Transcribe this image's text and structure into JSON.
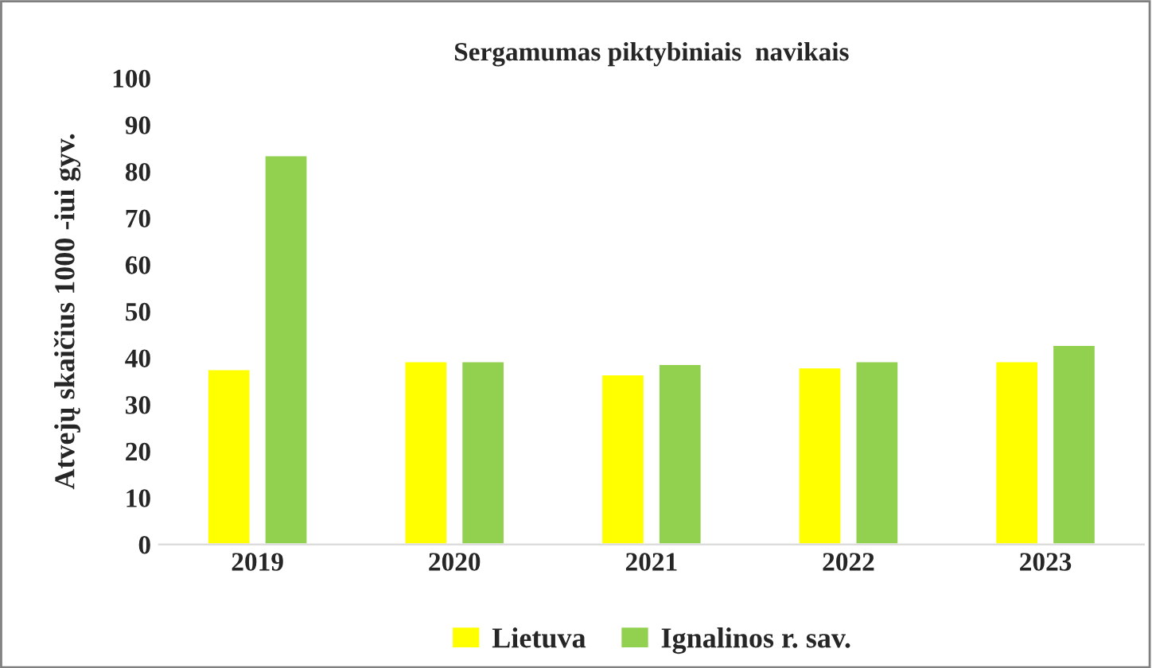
{
  "chart_data": {
    "type": "bar",
    "title": "Sergamumas piktybiniais  navikais",
    "ylabel": "Atvejų skaičius 1000 -iui gyv.",
    "categories": [
      "2019",
      "2020",
      "2021",
      "2022",
      "2023"
    ],
    "series": [
      {
        "name": "Lietuva",
        "color": "#ffff00",
        "values": [
          37.6,
          39.3,
          36.5,
          38.0,
          39.3
        ]
      },
      {
        "name": "Ignalinos r. sav.",
        "color": "#92d050",
        "values": [
          83.5,
          39.3,
          38.7,
          39.3,
          42.8
        ]
      }
    ],
    "ylim": [
      0,
      100
    ],
    "yticks": [
      0,
      10,
      20,
      30,
      40,
      50,
      60,
      70,
      80,
      90,
      100
    ],
    "grid": false,
    "legend": "bottom"
  }
}
